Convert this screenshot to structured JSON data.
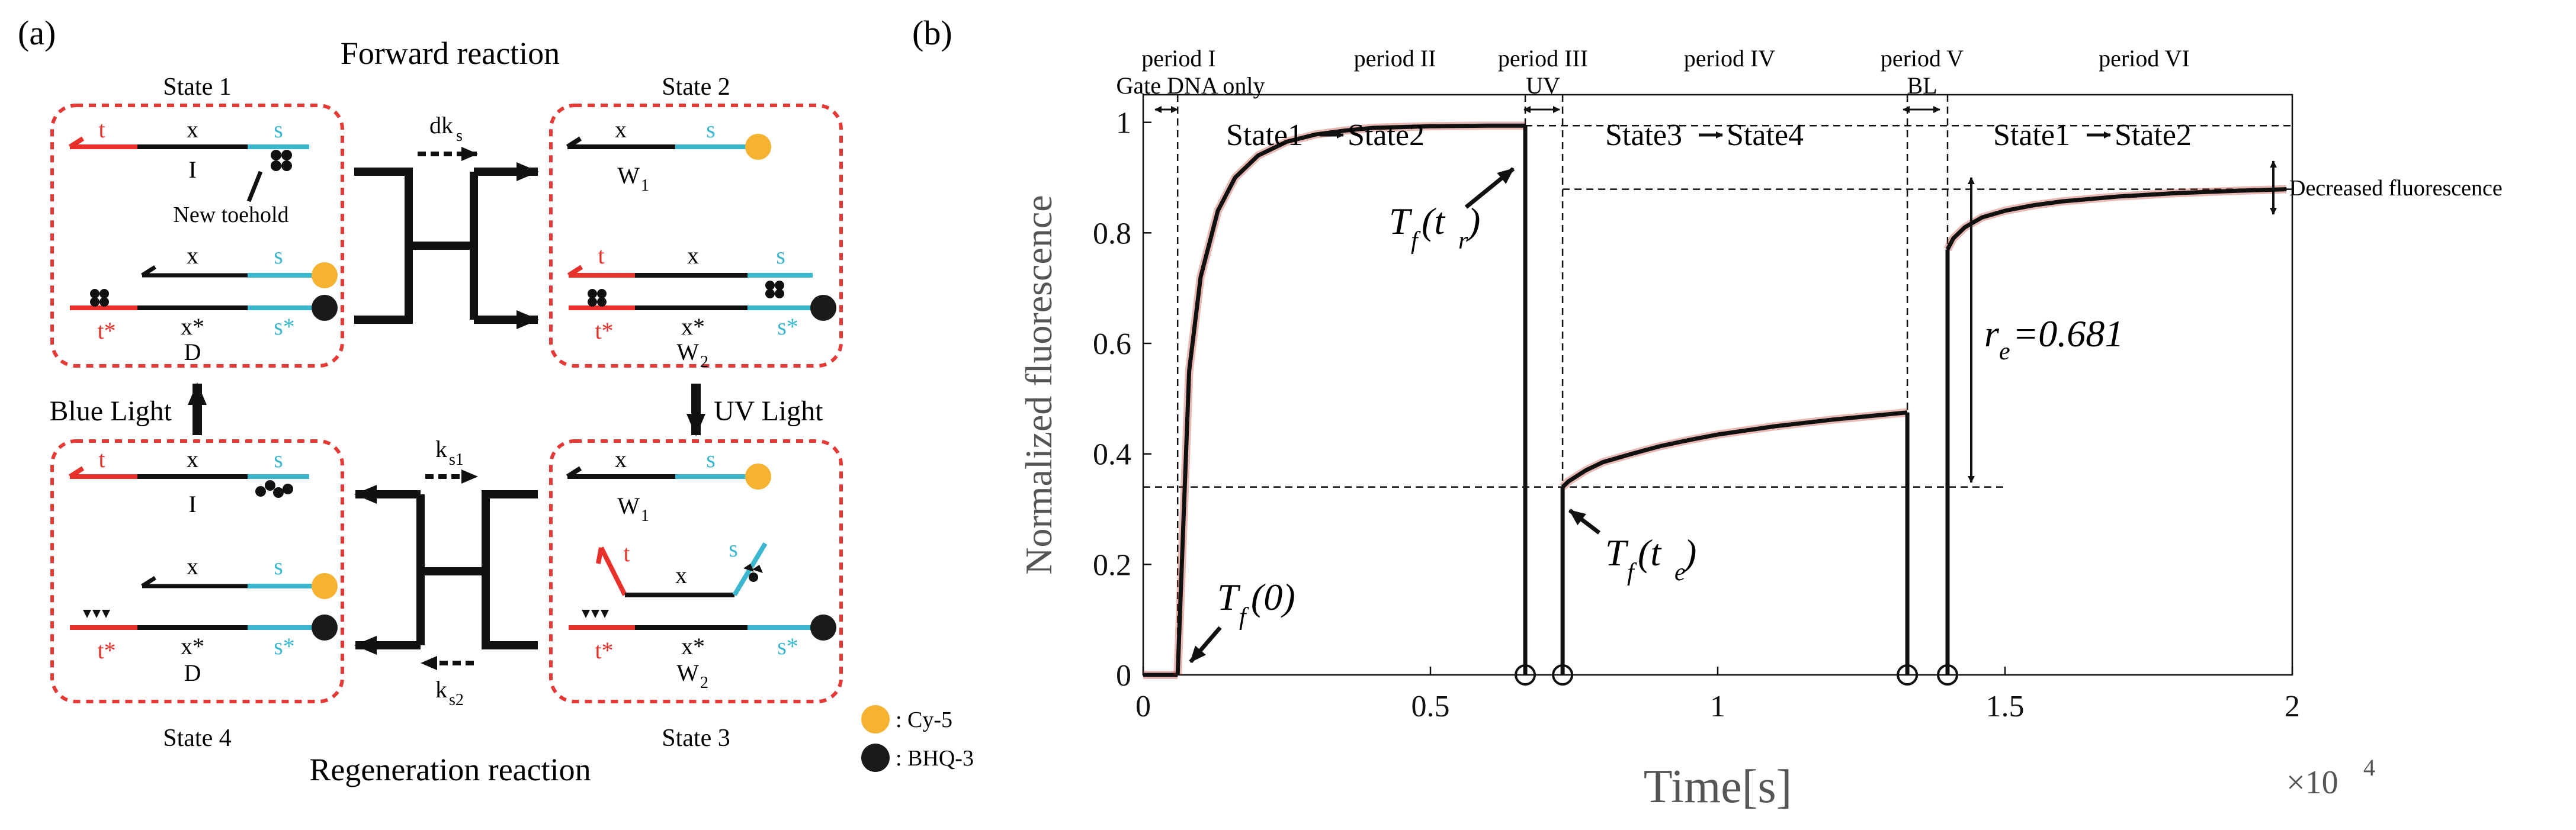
{
  "panel_a": {
    "label": "(a)",
    "forward_title": "Forward reaction",
    "regeneration_title": "Regeneration reaction",
    "state1_label": "State 1",
    "state2_label": "State 2",
    "state3_label": "State 3",
    "state4_label": "State 4",
    "blue_light": "Blue Light",
    "uv_light": "UV Light",
    "rate_forward": "dk",
    "rate_forward_sub": "s",
    "rate_regen1": "k",
    "rate_regen1_sub": "s1",
    "rate_regen2": "k",
    "rate_regen2_sub": "s2",
    "new_toehold": "New toehold",
    "strand_I": "I",
    "strand_D": "D",
    "strand_W": "W",
    "sub_1": "1",
    "sub_2": "2",
    "seg_t": "t",
    "seg_x": "x",
    "seg_s": "s",
    "seg_t_star": "t*",
    "seg_x_star": "x*",
    "seg_s_star": "s*",
    "legend": [
      {
        "label": ": Cy-5",
        "color": "#F5B331"
      },
      {
        "label": ": BHQ-3",
        "color": "#1A1A1A"
      }
    ],
    "colors": {
      "toehold": "#E8312B",
      "domain_s": "#3BB7CF",
      "box": "#E53935",
      "cy5": "#F5B331",
      "bhq": "#1A1A1A"
    }
  },
  "panel_b": {
    "label": "(b)",
    "periods": [
      {
        "name": "period I",
        "sub": "Gate DNA only"
      },
      {
        "name": "period II",
        "sub": ""
      },
      {
        "name": "period III",
        "sub": "UV"
      },
      {
        "name": "period IV",
        "sub": ""
      },
      {
        "name": "period V",
        "sub": "BL"
      },
      {
        "name": "period VI",
        "sub": ""
      }
    ],
    "transition_1to2_a": "State1",
    "transition_1to2_b": "State2",
    "transition_3to4_a": "State3",
    "transition_3to4_b": "State4",
    "transition_1to2_c": "State1",
    "transition_1to2_d": "State2",
    "ann_tf_tr": "T",
    "ann_tf_tr_sub": "f",
    "ann_tf_tr_arg": "(t",
    "ann_tf_tr_arg_sub": "r",
    "ann_tf_tr_close": ")",
    "ann_tf_te": "T",
    "ann_tf_te_sub": "f",
    "ann_tf_te_arg": "(t",
    "ann_tf_te_arg_sub": "e",
    "ann_tf_te_close": ")",
    "ann_tf_0": "T",
    "ann_tf_0_sub": "f",
    "ann_tf_0_arg": "(0)",
    "ann_re": "r",
    "ann_re_sub": "e",
    "ann_re_val": "=0.681",
    "decreased": "Decreased fluorescence",
    "x_multiplier": "×10",
    "x_multiplier_exp": "4"
  },
  "chart_data": {
    "type": "line",
    "title": "",
    "xlabel": "Time[s]",
    "ylabel": "Normalized fluorescence",
    "xlim": [
      0,
      20000
    ],
    "ylim": [
      0,
      1.05
    ],
    "xticks": [
      0,
      5000,
      10000,
      15000,
      20000
    ],
    "xtick_labels": [
      "0",
      "0.5",
      "1",
      "1.5",
      "2"
    ],
    "yticks": [
      0,
      0.2,
      0.4,
      0.6,
      0.8,
      1.0
    ],
    "ytick_labels": [
      "0",
      "0.2",
      "0.4",
      "0.6",
      "0.8",
      "1"
    ],
    "period_boundaries": [
      600,
      6650,
      7300,
      13300,
      14000
    ],
    "series": [
      {
        "name": "period I",
        "x": [
          0,
          200,
          400,
          600
        ],
        "values": [
          0.0,
          0.0,
          0.0,
          0.0
        ]
      },
      {
        "name": "period II",
        "x": [
          600,
          800,
          1000,
          1300,
          1600,
          2000,
          2500,
          3000,
          3500,
          4000,
          5000,
          6000,
          6650
        ],
        "values": [
          0.0,
          0.55,
          0.72,
          0.84,
          0.9,
          0.94,
          0.965,
          0.978,
          0.985,
          0.99,
          0.993,
          0.994,
          0.994
        ]
      },
      {
        "name": "period IV",
        "x": [
          7300,
          7400,
          7700,
          8000,
          8500,
          9000,
          9500,
          10000,
          11000,
          12000,
          13300
        ],
        "values": [
          0.34,
          0.35,
          0.37,
          0.385,
          0.4,
          0.414,
          0.425,
          0.435,
          0.45,
          0.462,
          0.475
        ]
      },
      {
        "name": "period VI",
        "x": [
          14000,
          14100,
          14300,
          14600,
          15000,
          15500,
          16000,
          17000,
          18000,
          19000,
          19900
        ],
        "values": [
          0.77,
          0.79,
          0.81,
          0.828,
          0.84,
          0.85,
          0.857,
          0.866,
          0.872,
          0.876,
          0.879
        ]
      }
    ],
    "reference_lines": [
      {
        "name": "t_r level",
        "y": 0.994
      },
      {
        "name": "t_e level",
        "y": 0.34
      },
      {
        "name": "end level",
        "y": 0.879
      }
    ],
    "markers_at_zero": [
      6650,
      7300,
      13300,
      14000
    ]
  }
}
